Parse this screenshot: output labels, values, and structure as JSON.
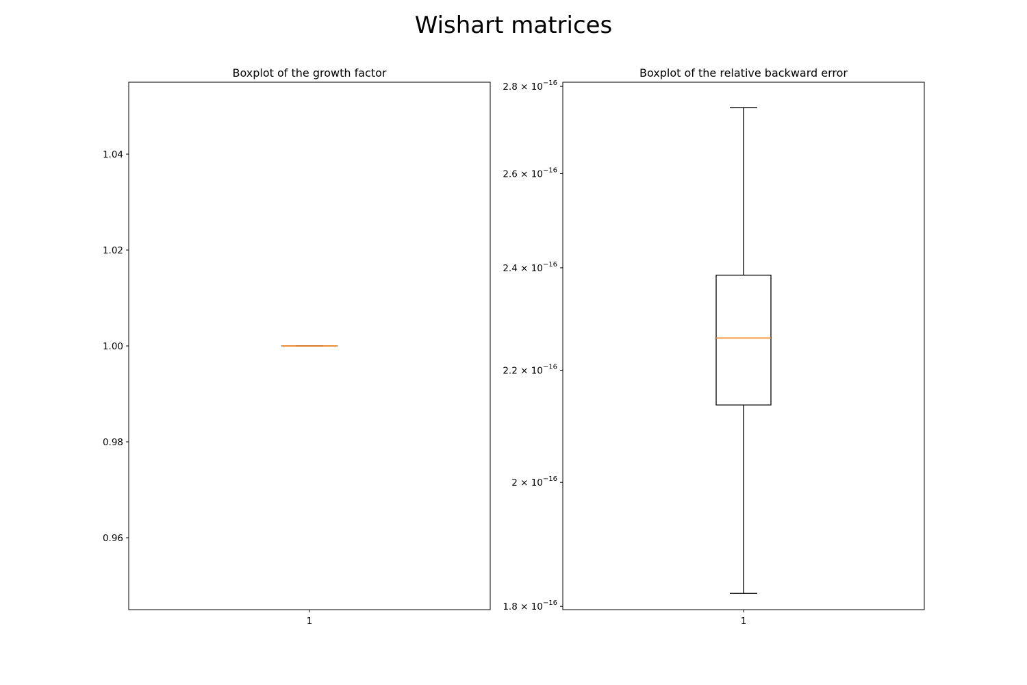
{
  "figure": {
    "title": "Wishart matrices"
  },
  "colors": {
    "box": "#000000",
    "median": "#ff7f0e",
    "background": "#ffffff"
  },
  "chart_data": [
    {
      "type": "boxplot",
      "title": "Boxplot of the growth factor",
      "xlabel": "",
      "ylabel": "",
      "categories": [
        "1"
      ],
      "yscale": "linear",
      "ylim": [
        0.945,
        1.055
      ],
      "yticks": [
        0.96,
        0.98,
        1.0,
        1.02,
        1.04
      ],
      "ytick_labels": [
        "0.96",
        "0.98",
        "1.00",
        "1.02",
        "1.04"
      ],
      "boxes": [
        {
          "whislo": 1.0,
          "q1": 1.0,
          "med": 1.0,
          "q3": 1.0,
          "whishi": 1.0
        }
      ],
      "grid": false,
      "legend": "none"
    },
    {
      "type": "boxplot",
      "title": "Boxplot of the relative backward error",
      "xlabel": "",
      "ylabel": "",
      "categories": [
        "1"
      ],
      "yscale": "log",
      "ylim": [
        1.795e-16,
        2.81e-16
      ],
      "yticks": [
        1.8e-16,
        2e-16,
        2.2e-16,
        2.4e-16,
        2.6e-16,
        2.8e-16
      ],
      "ytick_labels": [
        {
          "mantissa": "1.8",
          "base": "10",
          "exponent": "−16"
        },
        {
          "mantissa": "2",
          "base": "10",
          "exponent": "−16"
        },
        {
          "mantissa": "2.2",
          "base": "10",
          "exponent": "−16"
        },
        {
          "mantissa": "2.4",
          "base": "10",
          "exponent": "−16"
        },
        {
          "mantissa": "2.6",
          "base": "10",
          "exponent": "−16"
        },
        {
          "mantissa": "2.8",
          "base": "10",
          "exponent": "−16"
        }
      ],
      "boxes": [
        {
          "whislo": 1.82e-16,
          "q1": 2.136e-16,
          "med": 2.261e-16,
          "q3": 2.385e-16,
          "whishi": 2.75e-16
        }
      ],
      "grid": false,
      "legend": "none"
    }
  ]
}
